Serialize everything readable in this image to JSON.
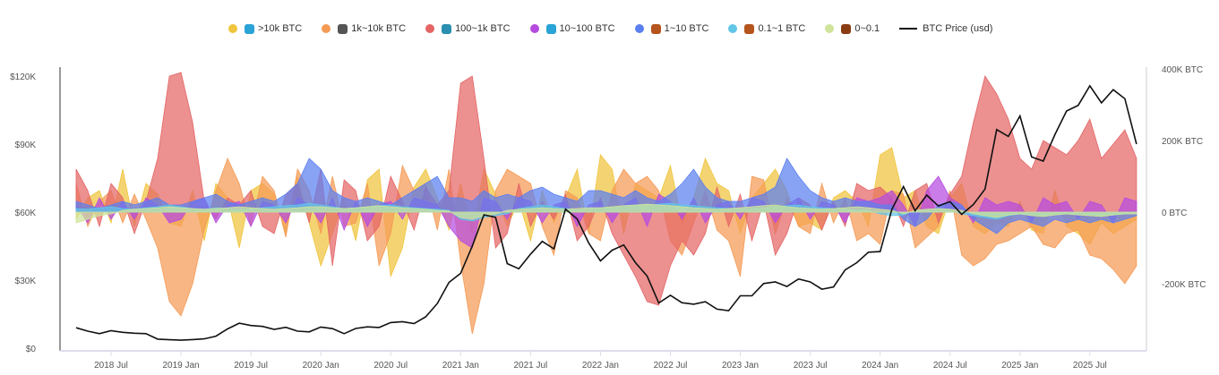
{
  "chart_data": {
    "type": "area",
    "legend_position": "top",
    "grid": false,
    "dates": [
      "2018-04",
      "2018-05",
      "2018-06",
      "2018-07",
      "2018-08",
      "2018-09",
      "2018-10",
      "2018-11",
      "2018-12",
      "2019-01",
      "2019-02",
      "2019-03",
      "2019-04",
      "2019-05",
      "2019-06",
      "2019-07",
      "2019-08",
      "2019-09",
      "2019-10",
      "2019-11",
      "2019-12",
      "2020-01",
      "2020-02",
      "2020-03",
      "2020-04",
      "2020-05",
      "2020-06",
      "2020-07",
      "2020-08",
      "2020-09",
      "2020-10",
      "2020-11",
      "2020-12",
      "2021-01",
      "2021-02",
      "2021-03",
      "2021-04",
      "2021-05",
      "2021-06",
      "2021-07",
      "2021-08",
      "2021-09",
      "2021-10",
      "2021-11",
      "2021-12",
      "2022-01",
      "2022-02",
      "2022-03",
      "2022-04",
      "2022-05",
      "2022-06",
      "2022-07",
      "2022-08",
      "2022-09",
      "2022-10",
      "2022-11",
      "2022-12",
      "2023-01",
      "2023-02",
      "2023-03",
      "2023-04",
      "2023-05",
      "2023-06",
      "2023-07",
      "2023-08",
      "2023-09",
      "2023-10",
      "2023-11",
      "2023-12",
      "2024-01",
      "2024-02",
      "2024-03",
      "2024-04",
      "2024-05",
      "2024-06",
      "2024-07",
      "2024-08",
      "2024-09",
      "2024-10",
      "2024-11",
      "2024-12",
      "2025-01",
      "2025-02",
      "2025-03",
      "2025-04",
      "2025-05",
      "2025-06",
      "2025-07",
      "2025-08",
      "2025-09",
      "2025-10",
      "2025-11"
    ],
    "x_tick_labels": [
      "2018 Jul",
      "2019 Jan",
      "2019 Jul",
      "2020 Jan",
      "2020 Jul",
      "2021 Jan",
      "2021 Jul",
      "2022 Jan",
      "2022 Jul",
      "2023 Jan",
      "2023 Jul",
      "2024 Jan",
      "2024 Jul",
      "2025 Jan",
      "2025 Jul"
    ],
    "y_left": {
      "ticks": [
        "$0",
        "$30K",
        "$60K",
        "$90K",
        "$120K"
      ],
      "range": [
        0,
        120000
      ]
    },
    "y_right": {
      "ticks": [
        "400K BTC",
        "200K BTC",
        "0 BTC",
        "-200K BTC"
      ],
      "range_kbtc": [
        -400,
        400
      ]
    },
    "series": [
      {
        "name": ">10k BTC",
        "color": "#f0c43c",
        "axis": "right",
        "values": [
          -20,
          40,
          60,
          -30,
          120,
          -40,
          80,
          50,
          -30,
          -40,
          60,
          -80,
          80,
          40,
          -100,
          60,
          80,
          50,
          -60,
          100,
          -30,
          -150,
          -60,
          40,
          -80,
          90,
          120,
          -180,
          -100,
          70,
          120,
          40,
          -50,
          80,
          -60,
          120,
          50,
          -40,
          30,
          -80,
          60,
          -30,
          40,
          120,
          -60,
          160,
          120,
          -60,
          80,
          60,
          40,
          130,
          -30,
          40,
          150,
          80,
          60,
          -60,
          40,
          80,
          120,
          60,
          -40,
          -30,
          -50,
          40,
          60,
          30,
          -40,
          160,
          180,
          40,
          60,
          -40,
          -60,
          40,
          80,
          -40,
          -60,
          -30,
          -40,
          30,
          -50,
          -60,
          60,
          -40,
          -60,
          -90,
          -30,
          -60,
          -40,
          -20
        ]
      },
      {
        "name": "1k~10k BTC",
        "color": "#f59a55",
        "axis": "right",
        "values": [
          80,
          -40,
          30,
          60,
          -30,
          50,
          -20,
          -100,
          -250,
          -290,
          -200,
          -50,
          60,
          150,
          80,
          -40,
          100,
          60,
          -70,
          120,
          60,
          -60,
          100,
          -40,
          -30,
          80,
          -150,
          -60,
          130,
          60,
          80,
          -50,
          120,
          -140,
          -340,
          -200,
          60,
          120,
          100,
          80,
          -40,
          -120,
          60,
          40,
          -60,
          -80,
          60,
          120,
          80,
          100,
          60,
          -80,
          -120,
          -30,
          60,
          -50,
          -80,
          -180,
          100,
          90,
          -60,
          40,
          -40,
          -60,
          80,
          -30,
          40,
          -80,
          -60,
          -90,
          60,
          50,
          -100,
          -70,
          -40,
          60,
          -120,
          -150,
          -130,
          -90,
          -80,
          -60,
          -40,
          -90,
          -100,
          -60,
          -50,
          -120,
          -130,
          -160,
          -200,
          -150
        ]
      },
      {
        "name": "100~1k BTC",
        "color": "#e56565",
        "axis": "right",
        "values": [
          120,
          60,
          -40,
          80,
          40,
          -60,
          30,
          150,
          380,
          390,
          250,
          30,
          -20,
          40,
          20,
          60,
          -40,
          -60,
          50,
          80,
          -30,
          120,
          -150,
          90,
          60,
          -80,
          -40,
          100,
          30,
          -50,
          70,
          20,
          60,
          360,
          380,
          150,
          -100,
          -60,
          80,
          -40,
          30,
          -20,
          50,
          -80,
          -40,
          40,
          -60,
          -120,
          -180,
          -250,
          -260,
          -150,
          -80,
          -120,
          -60,
          70,
          -40,
          50,
          -80,
          30,
          -120,
          -60,
          40,
          20,
          -50,
          30,
          -40,
          80,
          60,
          70,
          40,
          -40,
          60,
          80,
          -30,
          50,
          100,
          250,
          380,
          330,
          260,
          150,
          120,
          200,
          180,
          160,
          200,
          260,
          150,
          190,
          230,
          150
        ]
      },
      {
        "name": "10~100 BTC",
        "color": "#b54be0",
        "axis": "right",
        "values": [
          20,
          -30,
          40,
          -20,
          30,
          -20,
          40,
          20,
          -30,
          -20,
          30,
          40,
          -30,
          20,
          30,
          -40,
          30,
          20,
          -30,
          40,
          20,
          -30,
          40,
          -50,
          30,
          -40,
          20,
          30,
          -20,
          40,
          30,
          20,
          -40,
          -80,
          -100,
          40,
          30,
          -20,
          40,
          30,
          -30,
          20,
          30,
          -40,
          20,
          30,
          -30,
          20,
          40,
          -40,
          50,
          30,
          -20,
          40,
          -30,
          20,
          30,
          -20,
          40,
          30,
          -30,
          20,
          40,
          -20,
          30,
          20,
          -30,
          40,
          30,
          40,
          60,
          20,
          -40,
          60,
          100,
          40,
          20,
          -30,
          40,
          20,
          30,
          20,
          -30,
          40,
          20,
          30,
          -20,
          30,
          20,
          -30,
          40,
          30
        ]
      },
      {
        "name": "1~10 BTC",
        "color": "#5b7ff0",
        "axis": "right",
        "values": [
          30,
          20,
          10,
          20,
          30,
          20,
          30,
          40,
          20,
          20,
          30,
          40,
          50,
          30,
          20,
          30,
          40,
          30,
          50,
          80,
          150,
          120,
          60,
          40,
          30,
          40,
          30,
          20,
          40,
          60,
          80,
          100,
          40,
          40,
          30,
          60,
          40,
          50,
          40,
          60,
          70,
          50,
          40,
          30,
          60,
          60,
          50,
          40,
          60,
          40,
          30,
          50,
          80,
          120,
          70,
          40,
          30,
          30,
          40,
          50,
          70,
          150,
          100,
          60,
          40,
          30,
          40,
          30,
          30,
          20,
          20,
          -20,
          -40,
          -20,
          20,
          30,
          20,
          -20,
          -40,
          -60,
          -30,
          -20,
          -30,
          -40,
          -20,
          -30,
          -20,
          -30,
          -20,
          -30,
          -20,
          -10
        ]
      },
      {
        "name": "0.1~1 BTC",
        "color": "#62c6e8",
        "axis": "right",
        "values": [
          10,
          8,
          12,
          15,
          10,
          8,
          12,
          15,
          20,
          15,
          10,
          8,
          12,
          10,
          8,
          10,
          12,
          15,
          18,
          20,
          25,
          20,
          15,
          10,
          12,
          15,
          18,
          20,
          15,
          12,
          10,
          8,
          5,
          -20,
          -25,
          -15,
          -10,
          -5,
          10,
          15,
          20,
          15,
          10,
          5,
          8,
          10,
          12,
          15,
          18,
          20,
          22,
          25,
          20,
          18,
          15,
          12,
          10,
          8,
          10,
          12,
          15,
          18,
          20,
          15,
          12,
          10,
          8,
          6,
          5,
          -5,
          -10,
          -8,
          5,
          8,
          10,
          5,
          -5,
          -10,
          -15,
          -20,
          -10,
          -5,
          -8,
          -10,
          -5,
          -3,
          -5,
          -8,
          -10,
          -8,
          -5,
          -3
        ]
      },
      {
        "name": "0~0.1",
        "color": "#cfe49a",
        "axis": "right",
        "values": [
          -30,
          -20,
          -10,
          -5,
          5,
          8,
          10,
          12,
          15,
          12,
          10,
          8,
          10,
          12,
          15,
          12,
          10,
          8,
          10,
          12,
          15,
          15,
          12,
          10,
          12,
          15,
          18,
          15,
          12,
          10,
          8,
          5,
          3,
          -15,
          -20,
          -10,
          -5,
          5,
          8,
          10,
          12,
          10,
          8,
          10,
          12,
          12,
          15,
          18,
          20,
          22,
          20,
          18,
          15,
          12,
          10,
          8,
          10,
          12,
          15,
          18,
          20,
          15,
          12,
          10,
          8,
          10,
          12,
          15,
          12,
          8,
          5,
          -5,
          5,
          8,
          10,
          8,
          5,
          -5,
          -10,
          -15,
          -8,
          -5,
          -10,
          -12,
          -8,
          -5,
          -8,
          -10,
          -12,
          -8,
          -5,
          -5
        ]
      },
      {
        "name": "BTC Price (usd)",
        "color": "#111111",
        "axis": "left",
        "type": "line",
        "values": [
          9000,
          7500,
          6400,
          7700,
          7000,
          6600,
          6400,
          4000,
          3700,
          3500,
          3800,
          4100,
          5300,
          8500,
          11000,
          10000,
          9600,
          8300,
          9200,
          7500,
          7200,
          9300,
          8600,
          6400,
          8700,
          9400,
          9100,
          11300,
          11700,
          10800,
          13800,
          19700,
          29000,
          33000,
          45000,
          58800,
          57700,
          37300,
          35000,
          41500,
          47100,
          43800,
          61300,
          57000,
          46300,
          38500,
          43200,
          45500,
          37700,
          31800,
          19900,
          23300,
          20000,
          19400,
          20500,
          17200,
          16500,
          23100,
          23100,
          28500,
          29200,
          27200,
          30500,
          29200,
          26000,
          27000,
          34500,
          37700,
          42300,
          42600,
          61200,
          71300,
          60600,
          67500,
          62700,
          64600,
          59000,
          63300,
          70200,
          96400,
          93400,
          102400,
          84300,
          82500,
          94200,
          104600,
          107100,
          115700,
          108200,
          114000,
          110000,
          90000
        ]
      }
    ]
  }
}
